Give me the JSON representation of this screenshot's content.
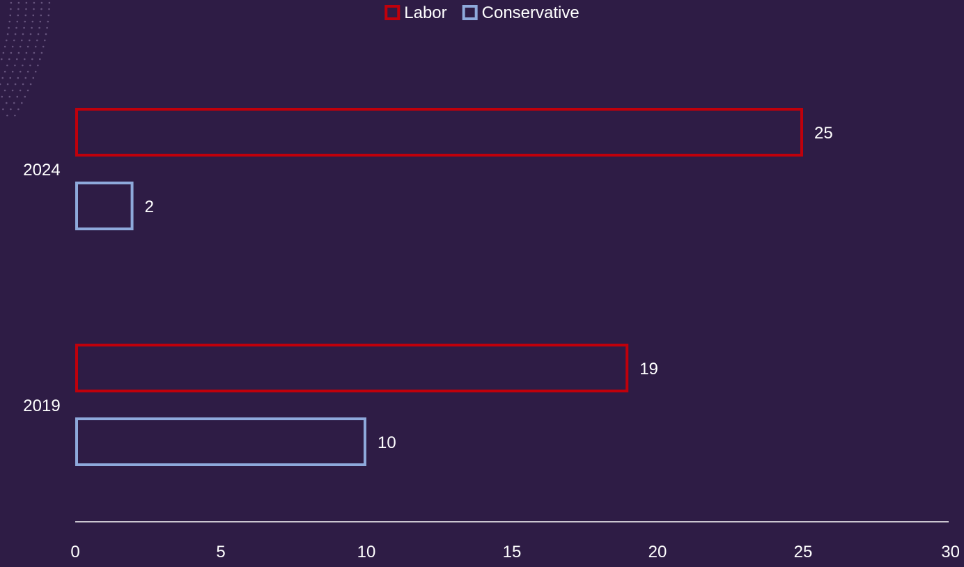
{
  "chart_data": {
    "type": "bar",
    "orientation": "horizontal",
    "categories": [
      "2024",
      "2019"
    ],
    "series": [
      {
        "name": "Labor",
        "values": [
          25,
          19
        ],
        "color": "#c0000b"
      },
      {
        "name": "Conservative",
        "values": [
          2,
          10
        ],
        "color": "#8ea9db"
      }
    ],
    "xlim": [
      0,
      30
    ],
    "xticks": [
      0,
      5,
      10,
      15,
      20,
      25,
      30
    ],
    "legend_position": "top",
    "grid": false,
    "background_color": "#2e1c45",
    "axis_color": "#ffffff"
  }
}
